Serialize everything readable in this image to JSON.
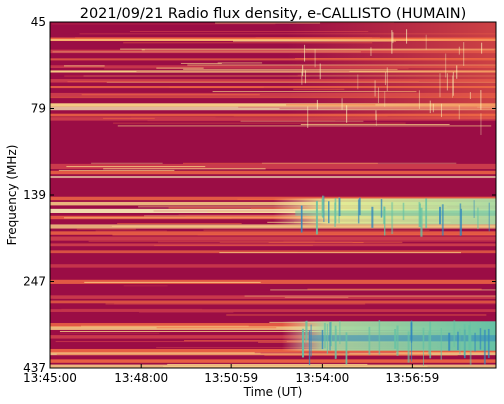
{
  "chart_data": {
    "type": "heatmap",
    "title": "2021/09/21  Radio flux density, e-CALLISTO (HUMAIN)",
    "xlabel": "Time (UT)",
    "ylabel": "Frequency (MHz)",
    "x_tick_labels": [
      "13:45:00",
      "13:48:00",
      "13:50:59",
      "13:54:00",
      "13:56:59"
    ],
    "y_tick_labels": [
      "45",
      "79",
      "139",
      "247",
      "437"
    ],
    "x_range": [
      "13:45:00",
      "13:59:40"
    ],
    "y_range": [
      45,
      437
    ],
    "y_axis_inverted": true,
    "colormap": "Spectral",
    "colors": {
      "background_low": "#9b0d45",
      "mid_red": "#cf3f4c",
      "orange": "#f46d43",
      "yellow": "#fee08b",
      "pale": "#ffffbf",
      "green": "#abdda4",
      "teal": "#66c2a5",
      "blue": "#3288bd"
    },
    "features": [
      {
        "description": "broadband radio noise storm / emission enhancement",
        "start": "13:53:30",
        "end": "13:59:40",
        "freq_range_mhz": [
          139,
          437
        ]
      }
    ]
  }
}
